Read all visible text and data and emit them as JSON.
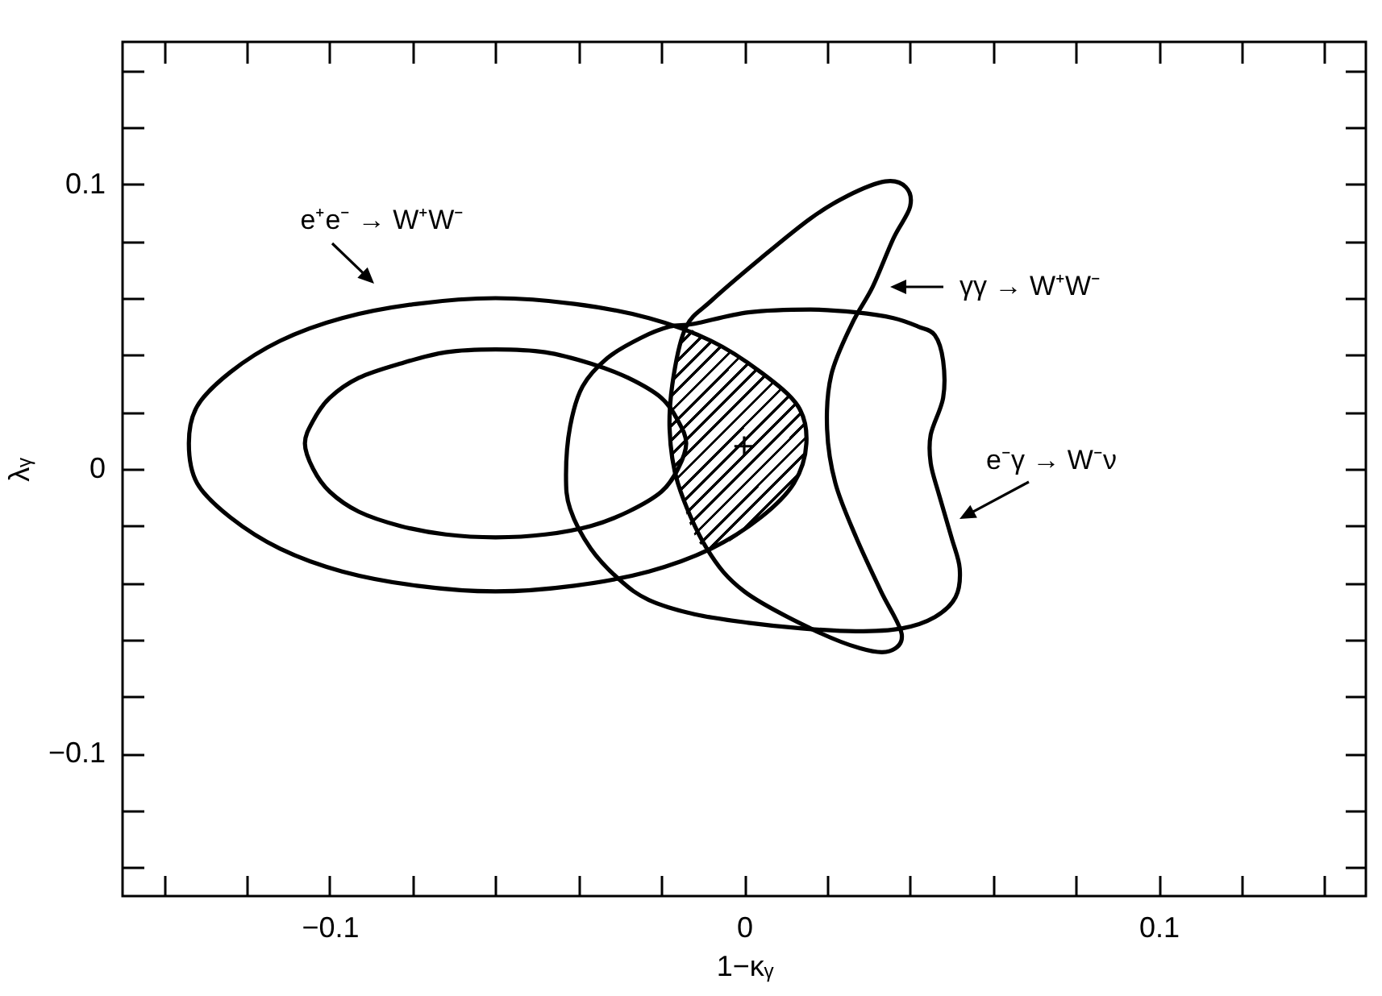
{
  "chart_data": {
    "type": "area",
    "xlabel": "1−κᵧ",
    "ylabel": "λᵧ",
    "xlim": [
      -0.15,
      0.15
    ],
    "ylim": [
      -0.15,
      0.15
    ],
    "xticks": [
      {
        "value": -0.14,
        "label": null
      },
      {
        "value": -0.12,
        "label": null
      },
      {
        "value": -0.1,
        "label": "−0.1"
      },
      {
        "value": -0.08,
        "label": null
      },
      {
        "value": -0.06,
        "label": null
      },
      {
        "value": -0.04,
        "label": null
      },
      {
        "value": -0.02,
        "label": null
      },
      0,
      {
        "value": 0.02,
        "label": null
      },
      {
        "value": 0.04,
        "label": null
      },
      {
        "value": 0.06,
        "label": null
      },
      {
        "value": 0.08,
        "label": null
      },
      0.1,
      {
        "value": 0.12,
        "label": null
      },
      {
        "value": 0.14,
        "label": null
      }
    ],
    "yticks": [
      {
        "value": -0.14,
        "label": null
      },
      {
        "value": -0.12,
        "label": null
      },
      {
        "value": -0.1,
        "label": "−0.1"
      },
      {
        "value": -0.08,
        "label": null
      },
      {
        "value": -0.06,
        "label": null
      },
      {
        "value": -0.04,
        "label": null
      },
      {
        "value": -0.02,
        "label": null
      },
      0,
      {
        "value": 0.02,
        "label": null
      },
      {
        "value": 0.04,
        "label": null
      },
      {
        "value": 0.06,
        "label": null
      },
      {
        "value": 0.08,
        "label": null
      },
      0.1,
      {
        "value": 0.12,
        "label": null
      },
      {
        "value": 0.14,
        "label": null
      }
    ],
    "series": [
      {
        "color": "#000000",
        "x": [
          -0.014,
          -0.017,
          -0.018,
          -0.016,
          -0.009,
          0.004,
          0.012,
          0.015,
          0.013,
          0.004,
          -0.008,
          -0.014
        ],
        "values": [
          0.05,
          0.033,
          0.014,
          -0.005,
          -0.028,
          -0.017,
          -0.005,
          0.009,
          0.022,
          0.034,
          0.045,
          0.05
        ]
      },
      {
        "type": "scatter",
        "marker": "cross",
        "color": "#000000",
        "x": [
          0
        ],
        "values": [
          0.008
        ]
      }
    ],
    "annotations": [
      "e⁺e⁻ → W⁺W⁻",
      "γγ → W⁺W⁻",
      "e⁻γ → W⁻ν"
    ]
  }
}
